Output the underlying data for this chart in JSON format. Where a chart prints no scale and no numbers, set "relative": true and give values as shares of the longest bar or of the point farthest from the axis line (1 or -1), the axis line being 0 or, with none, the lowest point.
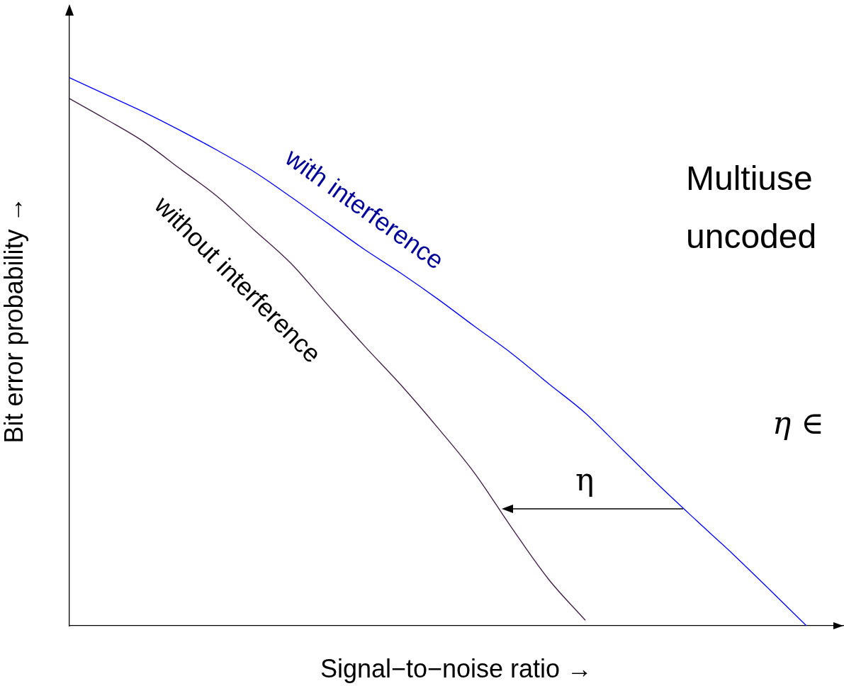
{
  "chart_data": {
    "type": "line",
    "relative": true,
    "tick_labels": false,
    "grid": false,
    "legend": false,
    "marker": "none",
    "line_style": "solid",
    "xlabel": "Signal−to−noise ratio →",
    "ylabel": "Bit error probability →",
    "categories": [
      null,
      null,
      null,
      null,
      null,
      null,
      null,
      null,
      null,
      null,
      null,
      null,
      null,
      null,
      null,
      null,
      null,
      null,
      null,
      null,
      null,
      null
    ],
    "series": [
      {
        "name": "with interference",
        "color": "#0000ff",
        "values": [
          1,
          0.969,
          0.938,
          0.904,
          0.868,
          0.829,
          0.783,
          0.735,
          0.687,
          0.643,
          0.596,
          0.546,
          0.497,
          0.442,
          0.388,
          0.322,
          0.256,
          0.193,
          0.131,
          0.066,
          0,
          null
        ]
      },
      {
        "name": "without interference",
        "color": "#3f1a45",
        "values": [
          0.962,
          0.924,
          0.884,
          0.834,
          0.784,
          0.723,
          0.662,
          0.586,
          0.511,
          0.439,
          0.361,
          0.278,
          0.179,
          0.085,
          0.01,
          null,
          null,
          null,
          null,
          null,
          null,
          null
        ]
      }
    ],
    "annotations": [
      "η",
      "Multiuse",
      "uncoded",
      "η ∈"
    ]
  }
}
